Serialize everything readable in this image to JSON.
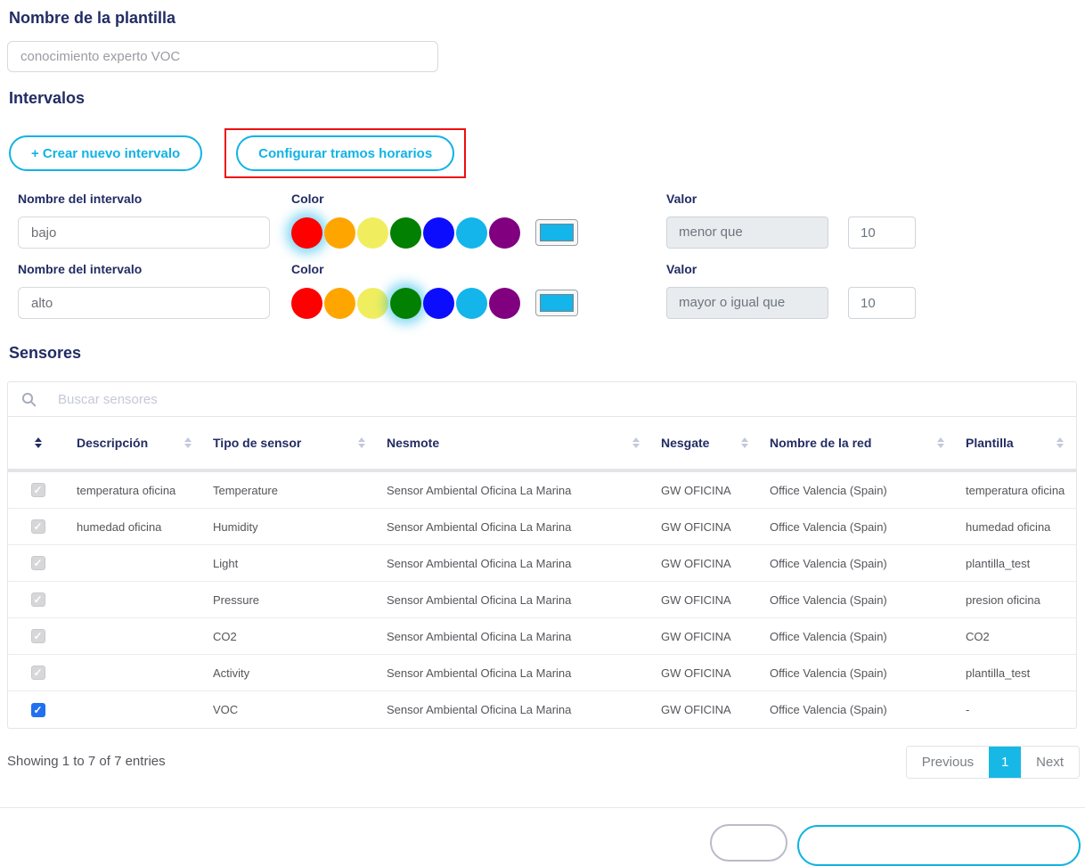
{
  "template_name": {
    "label": "Nombre de la plantilla",
    "value": "conocimiento experto VOC"
  },
  "intervals_section": {
    "title": "Intervalos",
    "create_button": "+ Crear nuevo intervalo",
    "configure_button": "Configurar tramos horarios",
    "name_label": "Nombre del intervalo",
    "color_label": "Color",
    "value_label": "Valor",
    "palette": [
      "#fe0000",
      "#ffa500",
      "#f0ee5e",
      "#018001",
      "#0d0dfe",
      "#13b5ea",
      "#800080"
    ],
    "picker_color": "#13b5ea",
    "items": [
      {
        "name": "bajo",
        "selected_color_index": 0,
        "operator": "menor que",
        "value": "10"
      },
      {
        "name": "alto",
        "selected_color_index": 3,
        "operator": "mayor o igual que",
        "value": "10"
      }
    ]
  },
  "sensors_section": {
    "title": "Sensores",
    "search_placeholder": "Buscar sensores",
    "columns": [
      "Descripción",
      "Tipo de sensor",
      "Nesmote",
      "Nesgate",
      "Nombre de la red",
      "Plantilla"
    ],
    "rows": [
      {
        "checkbox": "disabled-checked",
        "descripcion": "temperatura oficina",
        "tipo": "Temperature",
        "nesmote": "Sensor Ambiental Oficina La Marina",
        "nesgate": "GW OFICINA",
        "red": "Office Valencia (Spain)",
        "plantilla": "temperatura oficina"
      },
      {
        "checkbox": "disabled-checked",
        "descripcion": "humedad oficina",
        "tipo": "Humidity",
        "nesmote": "Sensor Ambiental Oficina La Marina",
        "nesgate": "GW OFICINA",
        "red": "Office Valencia (Spain)",
        "plantilla": "humedad oficina"
      },
      {
        "checkbox": "disabled-checked",
        "descripcion": "",
        "tipo": "Light",
        "nesmote": "Sensor Ambiental Oficina La Marina",
        "nesgate": "GW OFICINA",
        "red": "Office Valencia (Spain)",
        "plantilla": "plantilla_test"
      },
      {
        "checkbox": "disabled-checked",
        "descripcion": "",
        "tipo": "Pressure",
        "nesmote": "Sensor Ambiental Oficina La Marina",
        "nesgate": "GW OFICINA",
        "red": "Office Valencia (Spain)",
        "plantilla": "presion oficina"
      },
      {
        "checkbox": "disabled-checked",
        "descripcion": "",
        "tipo": "CO2",
        "nesmote": "Sensor Ambiental Oficina La Marina",
        "nesgate": "GW OFICINA",
        "red": "Office Valencia (Spain)",
        "plantilla": "CO2"
      },
      {
        "checkbox": "disabled-checked",
        "descripcion": "",
        "tipo": "Activity",
        "nesmote": "Sensor Ambiental Oficina La Marina",
        "nesgate": "GW OFICINA",
        "red": "Office Valencia (Spain)",
        "plantilla": "plantilla_test"
      },
      {
        "checkbox": "checked",
        "descripcion": "",
        "tipo": "VOC",
        "nesmote": "Sensor Ambiental Oficina La Marina",
        "nesgate": "GW OFICINA",
        "red": "Office Valencia (Spain)",
        "plantilla": "-"
      }
    ],
    "footer": {
      "showing": "Showing 1 to 7 of 7 entries",
      "previous": "Previous",
      "page": "1",
      "next": "Next"
    }
  },
  "colors": {
    "accent_cyan": "#11b3e4",
    "heading_navy": "#222c64",
    "highlight_red": "#ee0f0f",
    "pagination_active": "#17b8e5",
    "checkbox_active_blue": "#2070f0"
  }
}
